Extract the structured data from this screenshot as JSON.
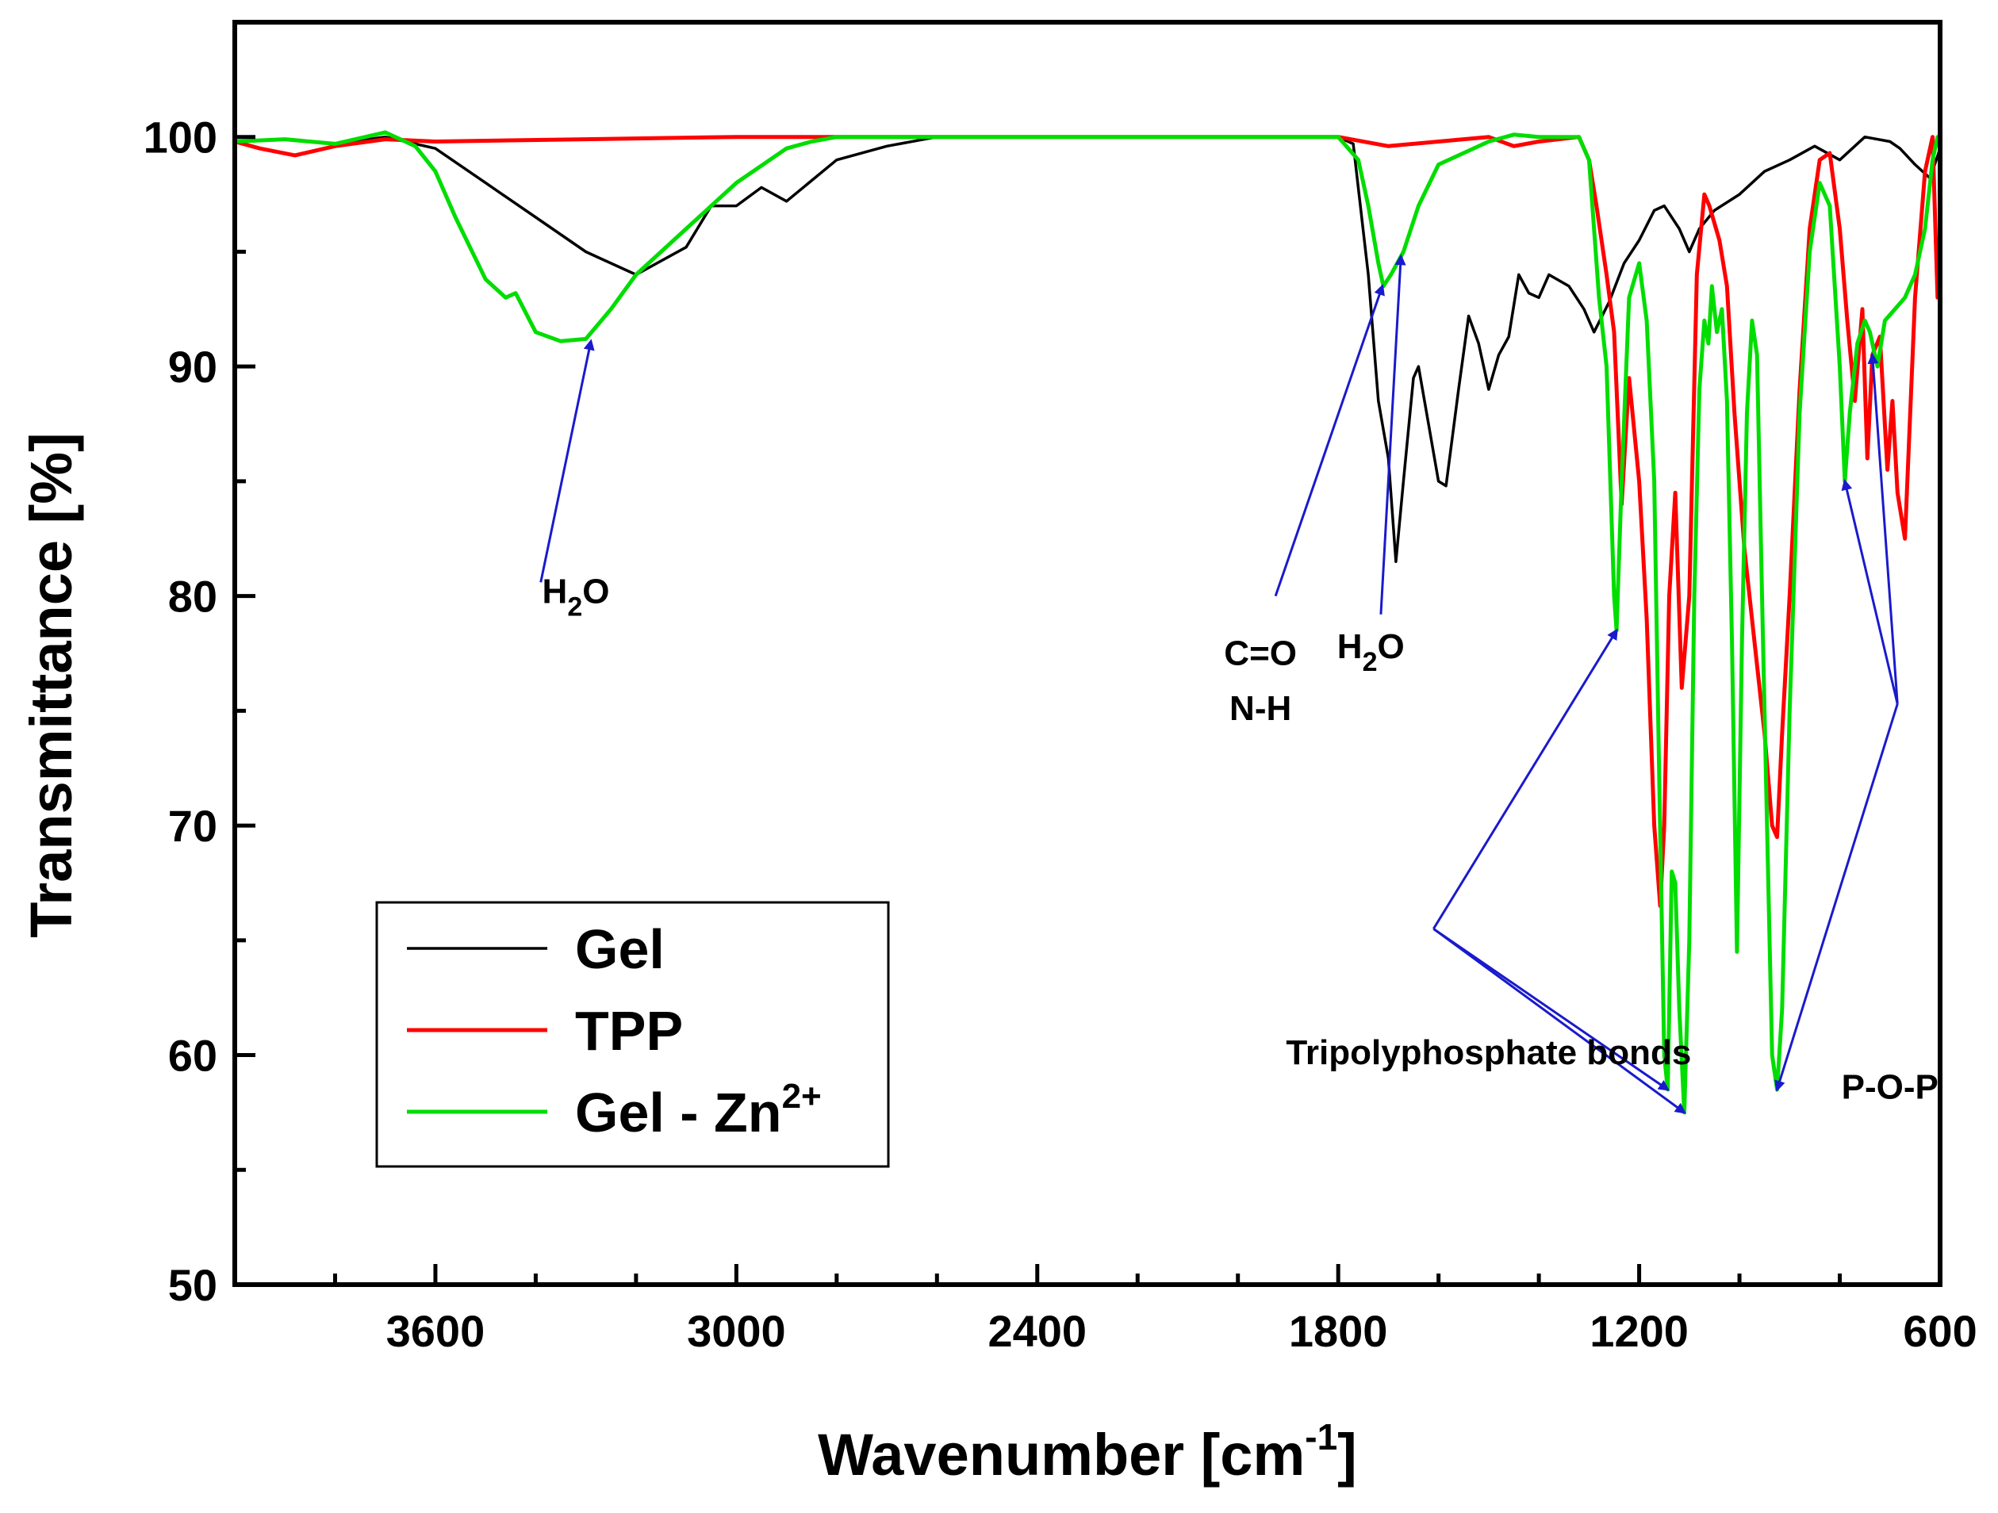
{
  "chart_data": {
    "type": "line",
    "title": "",
    "xlabel": "Wavenumber [cm",
    "xlabel_sup": "-1",
    "xlabel_end": "]",
    "ylabel": "Transmittance [%]",
    "xlim": [
      4000,
      600
    ],
    "ylim": [
      50,
      105
    ],
    "x_ticks": [
      3600,
      3000,
      2400,
      1800,
      1200,
      600
    ],
    "x_tick_labels": [
      "3600",
      "3000",
      "2400",
      "1800",
      "1200",
      "600"
    ],
    "y_ticks": [
      50,
      60,
      70,
      80,
      90,
      100
    ],
    "y_tick_labels": [
      "50",
      "60",
      "70",
      "80",
      "90",
      "100"
    ],
    "legend_position": "bottom-left",
    "series": [
      {
        "name": "Gel",
        "color": "#000000",
        "points": [
          [
            4000,
            99.8
          ],
          [
            3900,
            99.9
          ],
          [
            3800,
            99.7
          ],
          [
            3700,
            100.0
          ],
          [
            3600,
            99.5
          ],
          [
            3500,
            98.0
          ],
          [
            3400,
            96.5
          ],
          [
            3300,
            95.0
          ],
          [
            3200,
            94.0
          ],
          [
            3100,
            95.2
          ],
          [
            3050,
            97.0
          ],
          [
            3000,
            97.0
          ],
          [
            2950,
            97.8
          ],
          [
            2900,
            97.2
          ],
          [
            2800,
            99.0
          ],
          [
            2700,
            99.6
          ],
          [
            2600,
            100.0
          ],
          [
            2400,
            100.0
          ],
          [
            1800,
            100.0
          ],
          [
            1770,
            99.7
          ],
          [
            1740,
            94.0
          ],
          [
            1720,
            88.5
          ],
          [
            1700,
            86.0
          ],
          [
            1685,
            81.5
          ],
          [
            1670,
            85.0
          ],
          [
            1650,
            89.5
          ],
          [
            1640,
            90.0
          ],
          [
            1620,
            87.5
          ],
          [
            1600,
            85.0
          ],
          [
            1585,
            84.8
          ],
          [
            1560,
            89.0
          ],
          [
            1540,
            92.2
          ],
          [
            1520,
            91.0
          ],
          [
            1500,
            89.0
          ],
          [
            1480,
            90.5
          ],
          [
            1460,
            91.3
          ],
          [
            1440,
            94.0
          ],
          [
            1420,
            93.2
          ],
          [
            1400,
            93.0
          ],
          [
            1380,
            94.0
          ],
          [
            1340,
            93.5
          ],
          [
            1310,
            92.5
          ],
          [
            1290,
            91.5
          ],
          [
            1260,
            92.8
          ],
          [
            1230,
            94.5
          ],
          [
            1200,
            95.5
          ],
          [
            1170,
            96.8
          ],
          [
            1150,
            97.0
          ],
          [
            1120,
            96.0
          ],
          [
            1100,
            95.0
          ],
          [
            1080,
            96.0
          ],
          [
            1050,
            96.8
          ],
          [
            1000,
            97.5
          ],
          [
            950,
            98.5
          ],
          [
            900,
            99.0
          ],
          [
            850,
            99.6
          ],
          [
            800,
            99.0
          ],
          [
            750,
            100.0
          ],
          [
            700,
            99.8
          ],
          [
            680,
            99.5
          ],
          [
            650,
            98.8
          ],
          [
            620,
            98.2
          ],
          [
            600,
            99.5
          ]
        ]
      },
      {
        "name": "TPP",
        "color": "#ff0000",
        "points": [
          [
            4000,
            99.8
          ],
          [
            3950,
            99.5
          ],
          [
            3880,
            99.2
          ],
          [
            3800,
            99.6
          ],
          [
            3700,
            99.9
          ],
          [
            3600,
            99.8
          ],
          [
            3000,
            100.0
          ],
          [
            1800,
            100.0
          ],
          [
            1700,
            99.6
          ],
          [
            1600,
            99.8
          ],
          [
            1500,
            100.0
          ],
          [
            1450,
            99.6
          ],
          [
            1400,
            99.8
          ],
          [
            1320,
            100.0
          ],
          [
            1300,
            99.0
          ],
          [
            1285,
            97.0
          ],
          [
            1265,
            94.0
          ],
          [
            1250,
            91.5
          ],
          [
            1235,
            84.0
          ],
          [
            1220,
            89.5
          ],
          [
            1200,
            85.0
          ],
          [
            1185,
            79.0
          ],
          [
            1170,
            70.0
          ],
          [
            1158,
            66.5
          ],
          [
            1150,
            70.0
          ],
          [
            1140,
            80.0
          ],
          [
            1128,
            84.5
          ],
          [
            1115,
            76.0
          ],
          [
            1100,
            80.0
          ],
          [
            1085,
            94.0
          ],
          [
            1070,
            97.5
          ],
          [
            1060,
            97.0
          ],
          [
            1040,
            95.5
          ],
          [
            1025,
            93.5
          ],
          [
            1010,
            88.0
          ],
          [
            990,
            82.0
          ],
          [
            970,
            78.0
          ],
          [
            950,
            74.0
          ],
          [
            935,
            70.0
          ],
          [
            925,
            69.5
          ],
          [
            915,
            74.0
          ],
          [
            900,
            80.0
          ],
          [
            880,
            89.0
          ],
          [
            860,
            96.0
          ],
          [
            840,
            99.0
          ],
          [
            820,
            99.3
          ],
          [
            800,
            96.0
          ],
          [
            785,
            92.0
          ],
          [
            770,
            88.5
          ],
          [
            755,
            92.5
          ],
          [
            745,
            86.0
          ],
          [
            735,
            90.5
          ],
          [
            720,
            91.3
          ],
          [
            705,
            85.5
          ],
          [
            695,
            88.5
          ],
          [
            685,
            84.5
          ],
          [
            670,
            82.5
          ],
          [
            650,
            93.0
          ],
          [
            630,
            98.5
          ],
          [
            615,
            100.0
          ],
          [
            605,
            93.0
          ],
          [
            600,
            96.0
          ]
        ]
      },
      {
        "name": "Gel - Zn",
        "name_sup": "2+",
        "color": "#00dd00",
        "points": [
          [
            4000,
            99.8
          ],
          [
            3900,
            99.9
          ],
          [
            3800,
            99.7
          ],
          [
            3700,
            100.2
          ],
          [
            3640,
            99.6
          ],
          [
            3600,
            98.5
          ],
          [
            3560,
            96.5
          ],
          [
            3500,
            93.8
          ],
          [
            3460,
            93.0
          ],
          [
            3440,
            93.2
          ],
          [
            3400,
            91.5
          ],
          [
            3350,
            91.1
          ],
          [
            3300,
            91.2
          ],
          [
            3250,
            92.5
          ],
          [
            3200,
            94.0
          ],
          [
            3100,
            96.0
          ],
          [
            3000,
            98.0
          ],
          [
            2900,
            99.5
          ],
          [
            2850,
            99.8
          ],
          [
            2800,
            100.0
          ],
          [
            2600,
            100.0
          ],
          [
            1800,
            100.0
          ],
          [
            1760,
            99.0
          ],
          [
            1740,
            97.0
          ],
          [
            1720,
            94.5
          ],
          [
            1710,
            93.5
          ],
          [
            1695,
            94.0
          ],
          [
            1670,
            95.0
          ],
          [
            1640,
            97.0
          ],
          [
            1600,
            98.8
          ],
          [
            1500,
            99.8
          ],
          [
            1450,
            100.1
          ],
          [
            1400,
            100.0
          ],
          [
            1320,
            100.0
          ],
          [
            1300,
            99.0
          ],
          [
            1290,
            96.0
          ],
          [
            1280,
            93.0
          ],
          [
            1265,
            90.0
          ],
          [
            1250,
            80.0
          ],
          [
            1245,
            78.5
          ],
          [
            1235,
            85.0
          ],
          [
            1220,
            93.0
          ],
          [
            1200,
            94.5
          ],
          [
            1185,
            92.0
          ],
          [
            1170,
            85.0
          ],
          [
            1160,
            72.0
          ],
          [
            1150,
            60.0
          ],
          [
            1143,
            58.5
          ],
          [
            1135,
            68.0
          ],
          [
            1128,
            67.5
          ],
          [
            1120,
            62.0
          ],
          [
            1110,
            57.5
          ],
          [
            1100,
            65.0
          ],
          [
            1090,
            80.0
          ],
          [
            1080,
            89.0
          ],
          [
            1070,
            92.0
          ],
          [
            1062,
            91.0
          ],
          [
            1055,
            93.5
          ],
          [
            1045,
            91.5
          ],
          [
            1035,
            92.5
          ],
          [
            1025,
            88.5
          ],
          [
            1015,
            78.0
          ],
          [
            1005,
            64.5
          ],
          [
            995,
            78.0
          ],
          [
            985,
            88.0
          ],
          [
            975,
            92.0
          ],
          [
            965,
            90.5
          ],
          [
            955,
            80.0
          ],
          [
            945,
            70.0
          ],
          [
            935,
            60.0
          ],
          [
            925,
            58.5
          ],
          [
            915,
            62.0
          ],
          [
            900,
            75.0
          ],
          [
            880,
            88.0
          ],
          [
            860,
            95.0
          ],
          [
            840,
            98.0
          ],
          [
            820,
            97.0
          ],
          [
            800,
            90.0
          ],
          [
            790,
            85.0
          ],
          [
            780,
            88.0
          ],
          [
            765,
            91.0
          ],
          [
            750,
            92.0
          ],
          [
            740,
            91.5
          ],
          [
            725,
            90.0
          ],
          [
            710,
            92.0
          ],
          [
            690,
            92.5
          ],
          [
            670,
            93.0
          ],
          [
            650,
            94.0
          ],
          [
            630,
            96.0
          ],
          [
            615,
            99.0
          ],
          [
            605,
            100.0
          ],
          [
            600,
            99.5
          ]
        ]
      }
    ],
    "annotations": [
      {
        "id": "h2o-left",
        "label": "H",
        "sub": "2",
        "label_end": "O",
        "x": 3320,
        "y": 79.7
      },
      {
        "id": "co",
        "label": "C=O",
        "x": 1955,
        "y": 77.0
      },
      {
        "id": "nh",
        "label": "N-H",
        "x": 1955,
        "y": 74.6
      },
      {
        "id": "h2o-right",
        "label": "H",
        "sub": "2",
        "label_end": "O",
        "x": 1735,
        "y": 77.3
      },
      {
        "id": "tpp-bonds",
        "label": "Tripolyphosphate bonds",
        "x": 1500,
        "y": 59.6
      },
      {
        "id": "pop",
        "label": "P-O-P",
        "x": 700,
        "y": 58.1
      }
    ],
    "arrows": [
      {
        "id": "arrow-h2o-left",
        "from": [
          3390,
          80.6
        ],
        "to": [
          3290,
          91.1
        ]
      },
      {
        "id": "arrow-co",
        "from": [
          1925,
          80.0
        ],
        "to": [
          1712,
          93.5
        ]
      },
      {
        "id": "arrow-h2o-right",
        "from": [
          1715,
          79.2
        ],
        "to": [
          1675,
          94.8
        ]
      },
      {
        "id": "arrow-tpp-1",
        "from": [
          1610,
          65.5
        ],
        "to": [
          1245,
          78.5
        ]
      },
      {
        "id": "arrow-tpp-2",
        "from": [
          1610,
          65.5
        ],
        "to": [
          1143,
          58.5
        ]
      },
      {
        "id": "arrow-tpp-3",
        "from": [
          1610,
          65.5
        ],
        "to": [
          1110,
          57.5
        ]
      },
      {
        "id": "arrow-pop-1",
        "from": [
          685,
          75.3
        ],
        "to": [
          925,
          58.5
        ]
      },
      {
        "id": "arrow-pop-2",
        "from": [
          685,
          75.3
        ],
        "to": [
          790,
          85.0
        ]
      },
      {
        "id": "arrow-pop-3",
        "from": [
          685,
          75.3
        ],
        "to": [
          735,
          90.5
        ]
      }
    ],
    "arrow_color": "#1a1acc"
  }
}
